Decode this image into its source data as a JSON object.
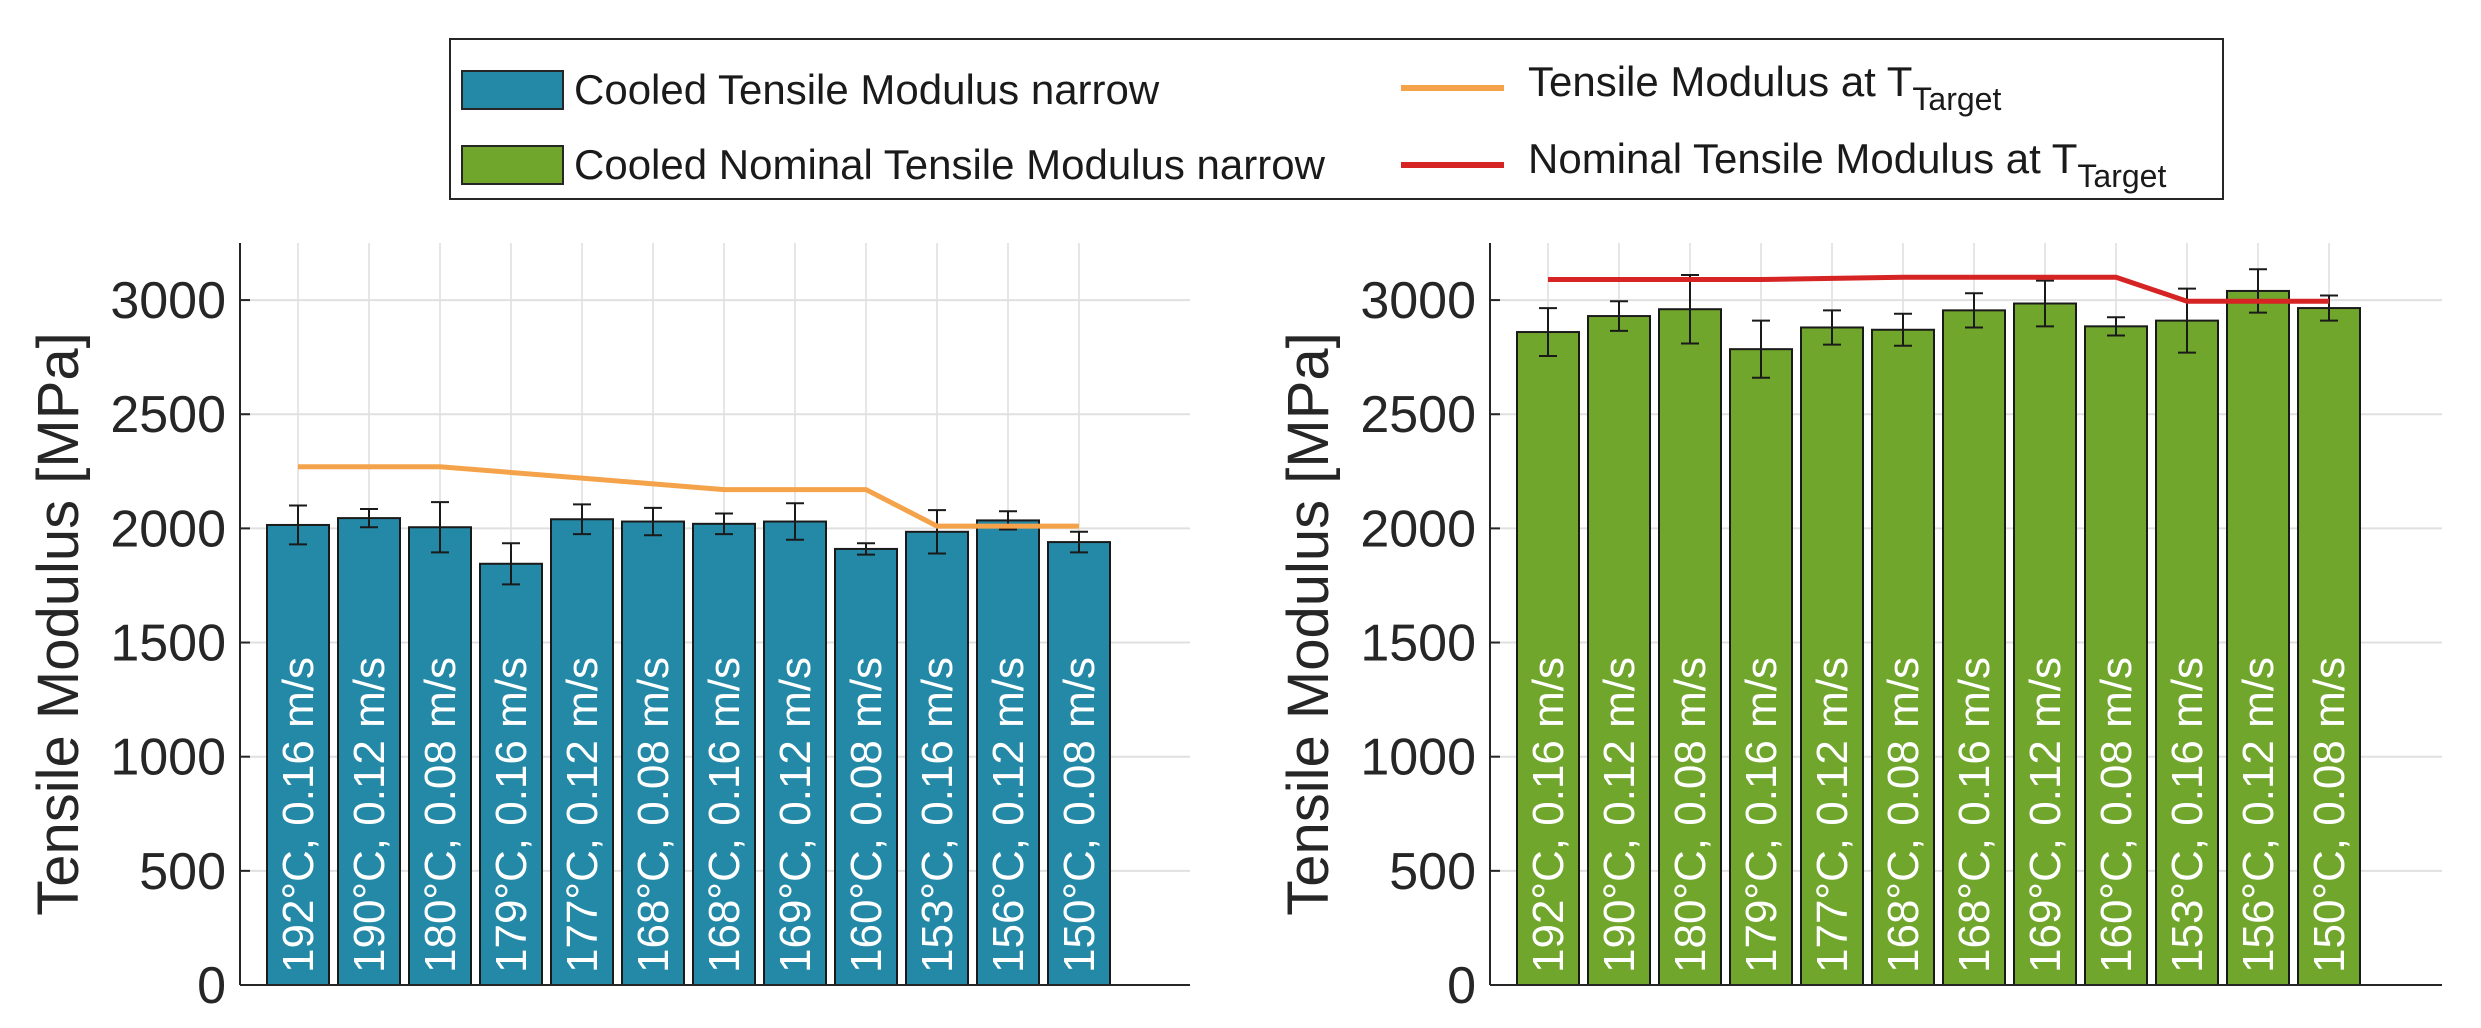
{
  "legend": {
    "items": [
      {
        "label": "Cooled Tensile Modulus narrow",
        "kind": "bar",
        "color": "#2389a7"
      },
      {
        "label": "Cooled Nominal Tensile Modulus narrow",
        "kind": "bar",
        "color": "#70a62b"
      },
      {
        "label": "Tensile Modulus at T",
        "sub": "Target",
        "kind": "line",
        "color": "#f5a34a"
      },
      {
        "label": "Nominal Tensile Modulus at T",
        "sub": "Target",
        "kind": "line",
        "color": "#d62323"
      }
    ]
  },
  "chart_data": [
    {
      "type": "bar",
      "ylabel": "Tensile Modulus [MPa]",
      "ylim": [
        0,
        3250
      ],
      "yticks": [
        0,
        500,
        1000,
        1500,
        2000,
        2500,
        3000
      ],
      "grid": true,
      "bar_color": "#2389a7",
      "categories": [
        "192°C, 0.16 m/s",
        "190°C, 0.12 m/s",
        "180°C, 0.08 m/s",
        "179°C, 0.16 m/s",
        "177°C, 0.12 m/s",
        "168°C, 0.08 m/s",
        "168°C, 0.16 m/s",
        "169°C, 0.12 m/s",
        "160°C, 0.08 m/s",
        "153°C, 0.16 m/s",
        "156°C, 0.12 m/s",
        "150°C, 0.08 m/s"
      ],
      "series": [
        {
          "name": "Cooled Tensile Modulus narrow",
          "values": [
            2015,
            2045,
            2005,
            1845,
            2040,
            2030,
            2020,
            2030,
            1910,
            1985,
            2035,
            1940
          ],
          "error": [
            85,
            40,
            110,
            90,
            65,
            60,
            45,
            80,
            25,
            95,
            40,
            45
          ]
        },
        {
          "name": "Tensile Modulus at T_Target",
          "kind": "line",
          "color": "#f5a34a",
          "values": [
            2270,
            2270,
            2270,
            2245,
            2220,
            2195,
            2170,
            2170,
            2170,
            2010,
            2010,
            2010
          ]
        }
      ]
    },
    {
      "type": "bar",
      "ylabel": "Tensile Modulus [MPa]",
      "ylim": [
        0,
        3250
      ],
      "yticks": [
        0,
        500,
        1000,
        1500,
        2000,
        2500,
        3000
      ],
      "grid": true,
      "bar_color": "#70a62b",
      "categories": [
        "192°C, 0.16 m/s",
        "190°C, 0.12 m/s",
        "180°C, 0.08 m/s",
        "179°C, 0.16 m/s",
        "177°C, 0.12 m/s",
        "168°C, 0.08 m/s",
        "168°C, 0.16 m/s",
        "169°C, 0.12 m/s",
        "160°C, 0.08 m/s",
        "153°C, 0.16 m/s",
        "156°C, 0.12 m/s",
        "150°C, 0.08 m/s"
      ],
      "series": [
        {
          "name": "Cooled Nominal Tensile Modulus narrow",
          "values": [
            2860,
            2930,
            2960,
            2785,
            2880,
            2870,
            2955,
            2985,
            2885,
            2910,
            3040,
            2965
          ],
          "error": [
            105,
            65,
            150,
            125,
            75,
            70,
            75,
            100,
            40,
            140,
            95,
            55
          ]
        },
        {
          "name": "Nominal Tensile Modulus at T_Target",
          "kind": "line",
          "color": "#d62323",
          "values": [
            3090,
            3090,
            3090,
            3090,
            3095,
            3100,
            3100,
            3100,
            3100,
            2995,
            2995,
            2995
          ]
        }
      ]
    }
  ]
}
